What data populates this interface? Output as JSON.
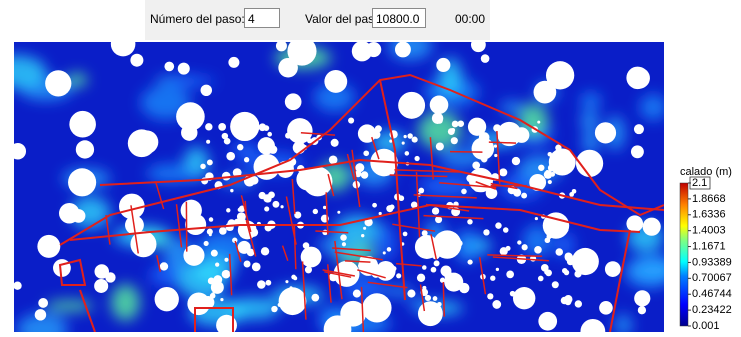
{
  "toolbar": {
    "step_number_label": "Número del paso:",
    "step_number": "4",
    "step_value_label": "Valor del paso:",
    "step_value": "10800.0",
    "time": "00:00"
  },
  "legend": {
    "title": "calado (m)",
    "labels": [
      2.1,
      1.8668,
      1.6336,
      1.4003,
      1.1671,
      0.93389,
      0.70067,
      0.46744,
      0.23422,
      0.001
    ]
  }
}
